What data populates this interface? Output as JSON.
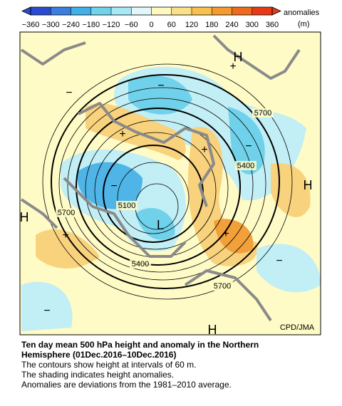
{
  "colorbar": {
    "ticks": [
      "−360",
      "−300",
      "−240",
      "−180",
      "−120",
      "−60",
      "0",
      "60",
      "120",
      "180",
      "240",
      "300",
      "360"
    ],
    "title": "anomalies",
    "unit": "(m)"
  },
  "map": {
    "labels": [
      "H",
      "H",
      "H",
      "H",
      "L",
      "5700",
      "5700",
      "5700",
      "5400",
      "5400",
      "5100",
      "+",
      "+",
      "+",
      "+",
      "+",
      "−",
      "−",
      "−",
      "−",
      "−",
      "−"
    ],
    "credit": "CPD/JMA"
  },
  "caption": {
    "title_lines": [
      "Ten day mean 500 hPa height and anomaly in the Northern",
      "Hemisphere (01Dec.2016–10Dec.2016)"
    ],
    "lines": [
      "The contours show height at intervals of 60 m.",
      "The shading indicates height anomalies.",
      "Anomalies are deviations from the 1981–2010 average."
    ]
  }
}
